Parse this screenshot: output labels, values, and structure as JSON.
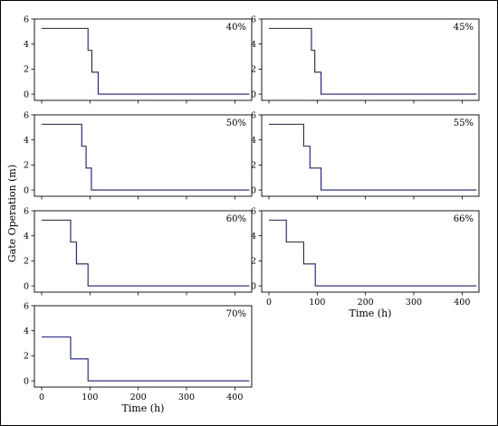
{
  "ylabel": "Gate Operation (m)",
  "xlabel": "Time (h)",
  "chart_data": [
    {
      "type": "line",
      "label": "40%",
      "xlim": [
        -15,
        435
      ],
      "ylim": [
        -0.5,
        6
      ],
      "xticks": [
        0,
        100,
        200,
        300,
        400
      ],
      "yticks": [
        0,
        2,
        4,
        6
      ],
      "show_xticklabels": false,
      "show_xlabel": false,
      "x": [
        0,
        96,
        96,
        104,
        104,
        117,
        117,
        430
      ],
      "y": [
        5.25,
        5.25,
        3.5,
        3.5,
        1.75,
        1.75,
        0,
        0
      ],
      "color": "#1a1a8c"
    },
    {
      "type": "line",
      "label": "45%",
      "xlim": [
        -15,
        435
      ],
      "ylim": [
        -0.5,
        6
      ],
      "xticks": [
        0,
        100,
        200,
        300,
        400
      ],
      "yticks": [
        0,
        2,
        4,
        6
      ],
      "show_xticklabels": false,
      "show_xlabel": false,
      "x": [
        0,
        88,
        88,
        95,
        95,
        108,
        108,
        430
      ],
      "y": [
        5.25,
        5.25,
        3.5,
        3.5,
        1.75,
        1.75,
        0,
        0
      ],
      "color": "#1a1a8c"
    },
    {
      "type": "line",
      "label": "50%",
      "xlim": [
        -15,
        435
      ],
      "ylim": [
        -0.5,
        6
      ],
      "xticks": [
        0,
        100,
        200,
        300,
        400
      ],
      "yticks": [
        0,
        2,
        4,
        6
      ],
      "show_xticklabels": false,
      "show_xlabel": false,
      "x": [
        0,
        83,
        83,
        92,
        92,
        103,
        103,
        430
      ],
      "y": [
        5.25,
        5.25,
        3.5,
        3.5,
        1.75,
        1.75,
        0,
        0
      ],
      "color": "#1a1a8c"
    },
    {
      "type": "line",
      "label": "55%",
      "xlim": [
        -15,
        435
      ],
      "ylim": [
        -0.5,
        6
      ],
      "xticks": [
        0,
        100,
        200,
        300,
        400
      ],
      "yticks": [
        0,
        2,
        4,
        6
      ],
      "show_xticklabels": false,
      "show_xlabel": false,
      "x": [
        0,
        72,
        72,
        85,
        85,
        108,
        108,
        430
      ],
      "y": [
        5.25,
        5.25,
        3.5,
        3.5,
        1.75,
        1.75,
        0,
        0
      ],
      "color": "#1a1a8c"
    },
    {
      "type": "line",
      "label": "60%",
      "xlim": [
        -15,
        435
      ],
      "ylim": [
        -0.5,
        6
      ],
      "xticks": [
        0,
        100,
        200,
        300,
        400
      ],
      "yticks": [
        0,
        2,
        4,
        6
      ],
      "show_xticklabels": false,
      "show_xlabel": false,
      "x": [
        0,
        60,
        60,
        72,
        72,
        96,
        96,
        430
      ],
      "y": [
        5.25,
        5.25,
        3.5,
        3.5,
        1.75,
        1.75,
        0,
        0
      ],
      "color": "#1a1a8c"
    },
    {
      "type": "line",
      "label": "66%",
      "xlim": [
        -15,
        435
      ],
      "ylim": [
        -0.5,
        6
      ],
      "xticks": [
        0,
        100,
        200,
        300,
        400
      ],
      "yticks": [
        0,
        2,
        4,
        6
      ],
      "show_xticklabels": true,
      "show_xlabel": true,
      "x": [
        0,
        36,
        36,
        72,
        72,
        96,
        96,
        430
      ],
      "y": [
        5.25,
        5.25,
        3.5,
        3.5,
        1.75,
        1.75,
        0,
        0
      ],
      "color": "#1a1a8c"
    },
    {
      "type": "line",
      "label": "70%",
      "xlim": [
        -15,
        435
      ],
      "ylim": [
        -0.5,
        6
      ],
      "xticks": [
        0,
        100,
        200,
        300,
        400
      ],
      "yticks": [
        0,
        2,
        4,
        6
      ],
      "show_xticklabels": true,
      "show_xlabel": true,
      "x": [
        0,
        60,
        60,
        96,
        96,
        430
      ],
      "y": [
        3.5,
        3.5,
        1.75,
        1.75,
        0,
        0
      ],
      "color": "#1a1a8c"
    }
  ]
}
